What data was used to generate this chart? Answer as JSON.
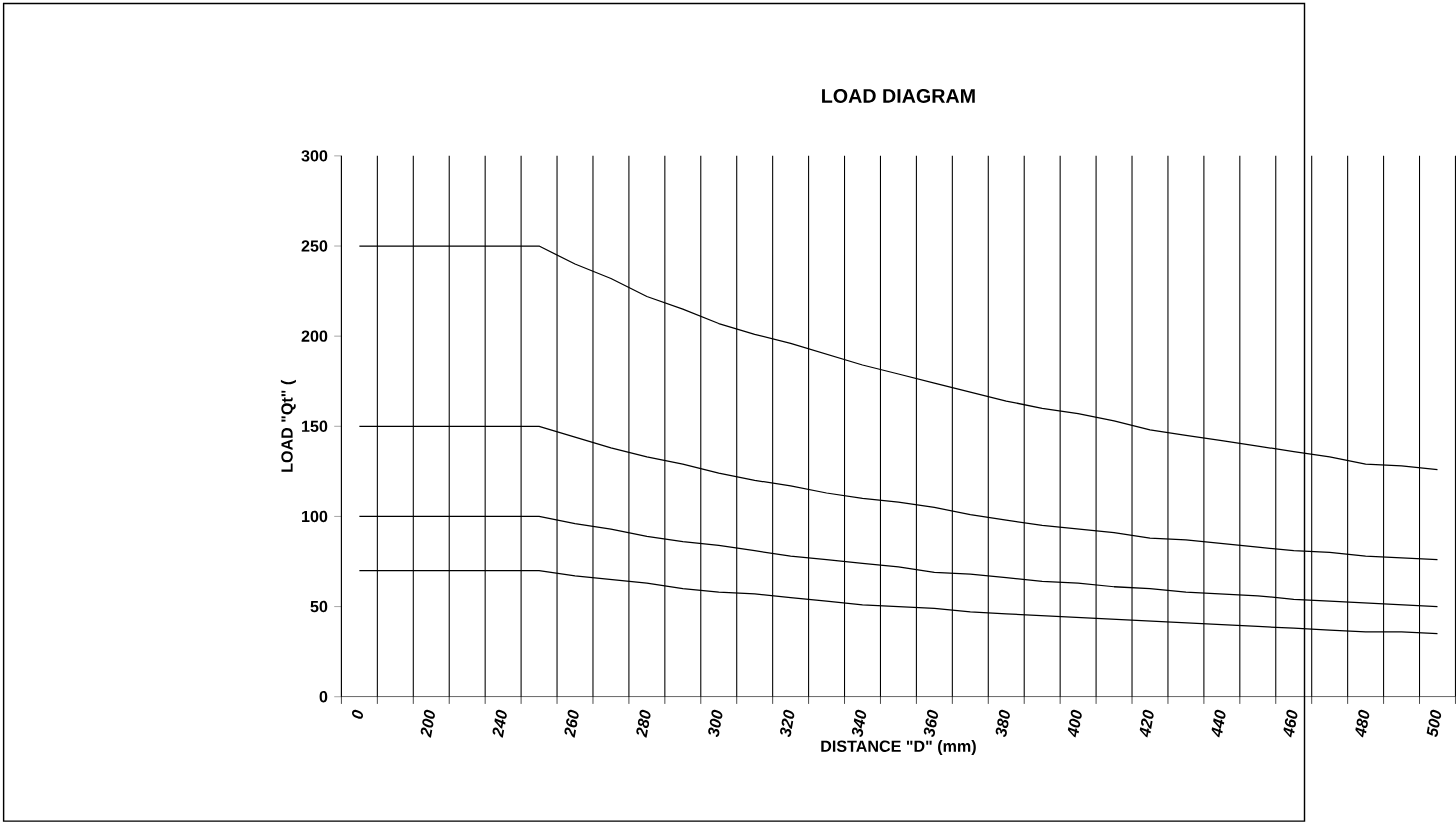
{
  "chart_data": {
    "type": "line",
    "title": "LOAD DIAGRAM",
    "xlabel": "DISTANCE  \"D\" (mm)",
    "ylabel": "LOAD \"Qt\" (",
    "categories": [
      "0",
      null,
      "200",
      null,
      "240",
      null,
      "260",
      null,
      "280",
      null,
      "300",
      null,
      "320",
      null,
      "340",
      null,
      "360",
      null,
      "380",
      null,
      "400",
      null,
      "420",
      null,
      "440",
      null,
      "460",
      null,
      "480",
      null,
      "500"
    ],
    "series": [
      {
        "color": "#000000",
        "values": [
          250,
          250,
          250,
          250,
          250,
          250,
          240,
          232,
          222,
          215,
          207,
          201,
          196,
          190,
          184,
          179,
          174,
          169,
          164,
          160,
          157,
          153,
          148,
          145,
          142,
          139,
          136,
          133,
          129,
          128,
          126
        ]
      },
      {
        "color": "#000000",
        "values": [
          150,
          150,
          150,
          150,
          150,
          150,
          144,
          138,
          133,
          129,
          124,
          120,
          117,
          113,
          110,
          108,
          105,
          101,
          98,
          95,
          93,
          91,
          88,
          87,
          85,
          83,
          81,
          80,
          78,
          77,
          76
        ]
      },
      {
        "color": "#000000",
        "values": [
          100,
          100,
          100,
          100,
          100,
          100,
          96,
          93,
          89,
          86,
          84,
          81,
          78,
          76,
          74,
          72,
          69,
          68,
          66,
          64,
          63,
          61,
          60,
          58,
          57,
          56,
          54,
          53,
          52,
          51,
          50
        ]
      },
      {
        "color": "#000000",
        "values": [
          70,
          70,
          70,
          70,
          70,
          70,
          67,
          65,
          63,
          60,
          58,
          57,
          55,
          53,
          51,
          50,
          49,
          47,
          46,
          45,
          44,
          43,
          42,
          41,
          40,
          39,
          38,
          37,
          36,
          36,
          35
        ]
      }
    ],
    "ylim": [
      0,
      300
    ],
    "yticks": [
      0,
      50,
      100,
      150,
      200,
      250,
      300
    ],
    "grid": "x",
    "marker": "none",
    "line_style": "solid"
  }
}
